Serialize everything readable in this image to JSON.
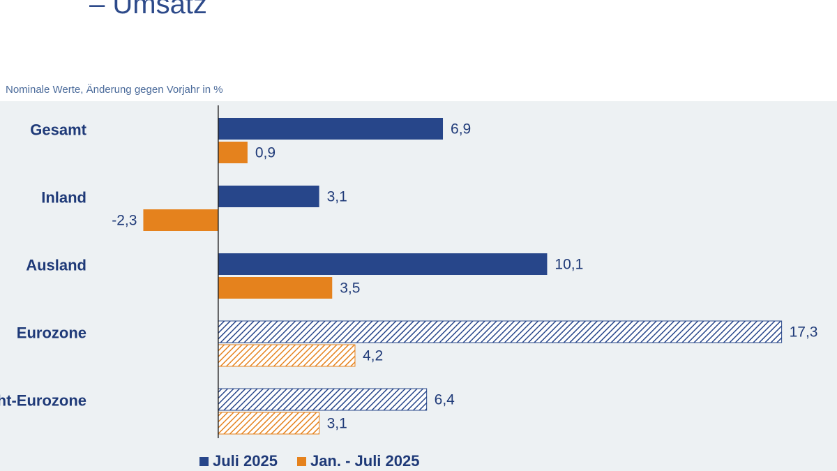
{
  "header": {
    "title": "– Umsatz",
    "subtitle": "Nominale Werte, Änderung gegen Vorjahr in %"
  },
  "colors": {
    "series_1": "#27468a",
    "series_2": "#e5821d",
    "plot_background": "#edf1f3",
    "text": "#1f3a78"
  },
  "chart_data": {
    "type": "bar",
    "orientation": "horizontal",
    "title": "",
    "subtitle": "Nominale Werte, Änderung gegen Vorjahr in %",
    "xlabel": "",
    "ylabel": "",
    "categories": [
      "Gesamt",
      "Inland",
      "Ausland",
      "Eurozone",
      "Nicht-Eurozone"
    ],
    "hatched_categories": [
      "Eurozone",
      "Nicht-Eurozone"
    ],
    "series": [
      {
        "name": "Juli 2025",
        "values": [
          6.9,
          3.1,
          10.1,
          17.3,
          6.4
        ],
        "labels": [
          "6,9",
          "3,1",
          "10,1",
          "17,3",
          "6,4"
        ]
      },
      {
        "name": "Jan. - Juli 2025",
        "values": [
          0.9,
          -2.3,
          3.5,
          4.2,
          3.1
        ],
        "labels": [
          "0,9",
          "-2,3",
          "3,5",
          "4,2",
          "3,1"
        ]
      }
    ],
    "xlim": [
      -6.7,
      19
    ],
    "grid": false,
    "legend": "bottom"
  }
}
